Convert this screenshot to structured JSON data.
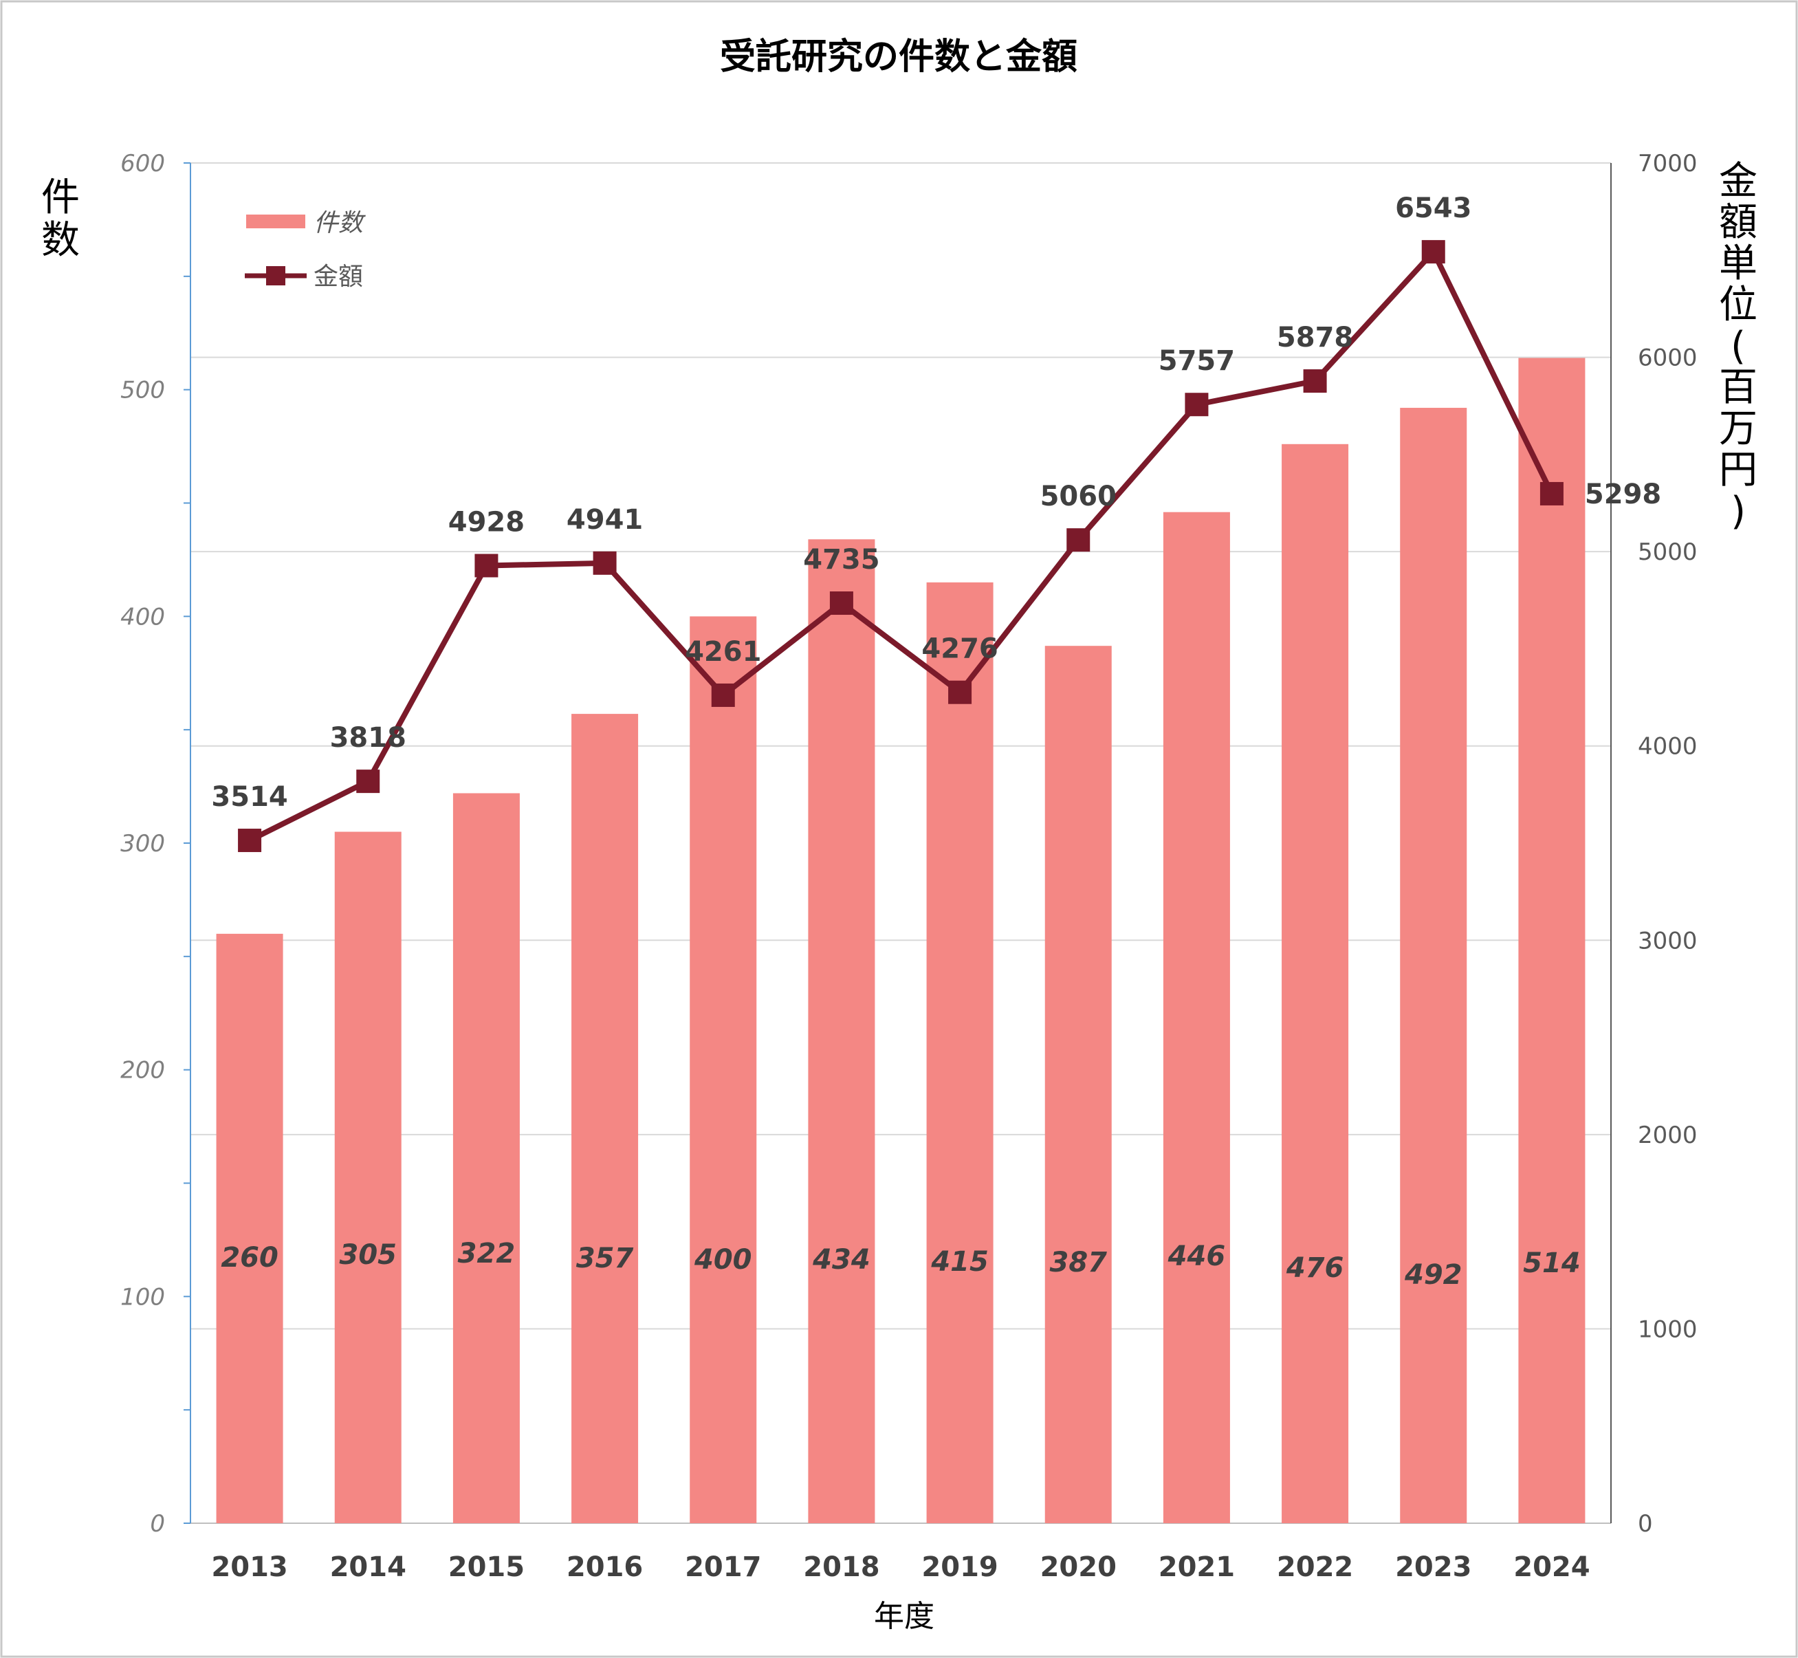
{
  "chart_data": {
    "type": "bar",
    "title": "受託研究の件数と金額",
    "xlabel": "年度",
    "ylabel_left": "件数",
    "ylabel_right": "金額単位(百万円)",
    "categories": [
      "2013",
      "2014",
      "2015",
      "2016",
      "2017",
      "2018",
      "2019",
      "2020",
      "2021",
      "2022",
      "2023",
      "2024"
    ],
    "series": [
      {
        "name": "件数",
        "type": "bar",
        "axis": "left",
        "color": "#f48784",
        "values": [
          260,
          305,
          322,
          357,
          400,
          434,
          415,
          387,
          446,
          476,
          492,
          514
        ]
      },
      {
        "name": "金額",
        "type": "line",
        "axis": "right",
        "color": "#7b1a2a",
        "values": [
          3514,
          3818,
          4928,
          4941,
          4261,
          4735,
          4276,
          5060,
          5757,
          5878,
          6543,
          5298
        ]
      }
    ],
    "ylim_left": [
      0,
      600
    ],
    "yticks_left": [
      0,
      100,
      200,
      300,
      400,
      500,
      600
    ],
    "ylim_right": [
      0,
      7000
    ],
    "yticks_right": [
      0,
      1000,
      2000,
      3000,
      4000,
      5000,
      6000,
      7000
    ],
    "grid": true,
    "legend_position": "top-left"
  }
}
